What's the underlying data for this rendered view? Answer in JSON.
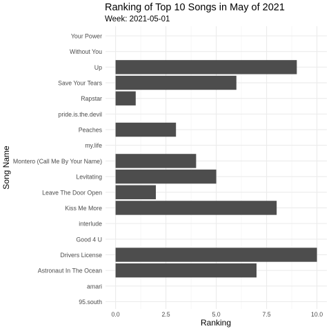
{
  "chart_data": {
    "type": "bar",
    "orientation": "horizontal",
    "title": "Ranking of Top 10 Songs in May of 2021",
    "subtitle": "Week: 2021-05-01",
    "xlabel": "Ranking",
    "ylabel": "Song Name",
    "xlim": [
      0,
      10
    ],
    "x_ticks": [
      "0.0",
      "2.5",
      "5.0",
      "7.5",
      "10.0"
    ],
    "grid": true,
    "legend": "none",
    "bar_color": "#4d4d4d",
    "grid_color": "#ebebeb",
    "categories": [
      "95.south",
      "amari",
      "Astronaut In The Ocean",
      "Drivers License",
      "Good 4 U",
      "interlude",
      "Kiss Me More",
      "Leave The Door Open",
      "Levitating",
      "Montero (Call Me By Your Name)",
      "my.life",
      "Peaches",
      "pride.is.the.devil",
      "Rapstar",
      "Save Your Tears",
      "Up",
      "Without You",
      "Your Power"
    ],
    "values": [
      0,
      0,
      7,
      10,
      0,
      0,
      8,
      2,
      5,
      4,
      0,
      3,
      0,
      1,
      6,
      9,
      0,
      0
    ]
  }
}
